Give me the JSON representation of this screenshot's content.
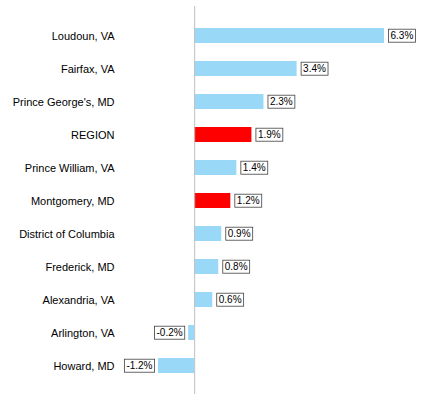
{
  "chart_data": {
    "type": "bar",
    "orientation": "horizontal",
    "categories": [
      "Loudoun, VA",
      "Fairfax, VA",
      "Prince George's, MD",
      "REGION",
      "Prince William, VA",
      "Montgomery, MD",
      "District of Columbia",
      "Frederick, MD",
      "Alexandria, VA",
      "Arlington, VA",
      "Howard, MD"
    ],
    "values": [
      6.3,
      3.4,
      2.3,
      1.9,
      1.4,
      1.2,
      0.9,
      0.8,
      0.6,
      -0.2,
      -1.2
    ],
    "value_labels": [
      "6.3%",
      "3.4%",
      "2.3%",
      "1.9%",
      "1.4%",
      "1.2%",
      "0.9%",
      "0.8%",
      "0.6%",
      "-0.2%",
      "-1.2%"
    ],
    "colors": [
      "#99d9f7",
      "#99d9f7",
      "#99d9f7",
      "#ff0000",
      "#99d9f7",
      "#ff0000",
      "#99d9f7",
      "#99d9f7",
      "#99d9f7",
      "#99d9f7",
      "#99d9f7"
    ],
    "data_labels": true,
    "tick_labels": "y"
  }
}
